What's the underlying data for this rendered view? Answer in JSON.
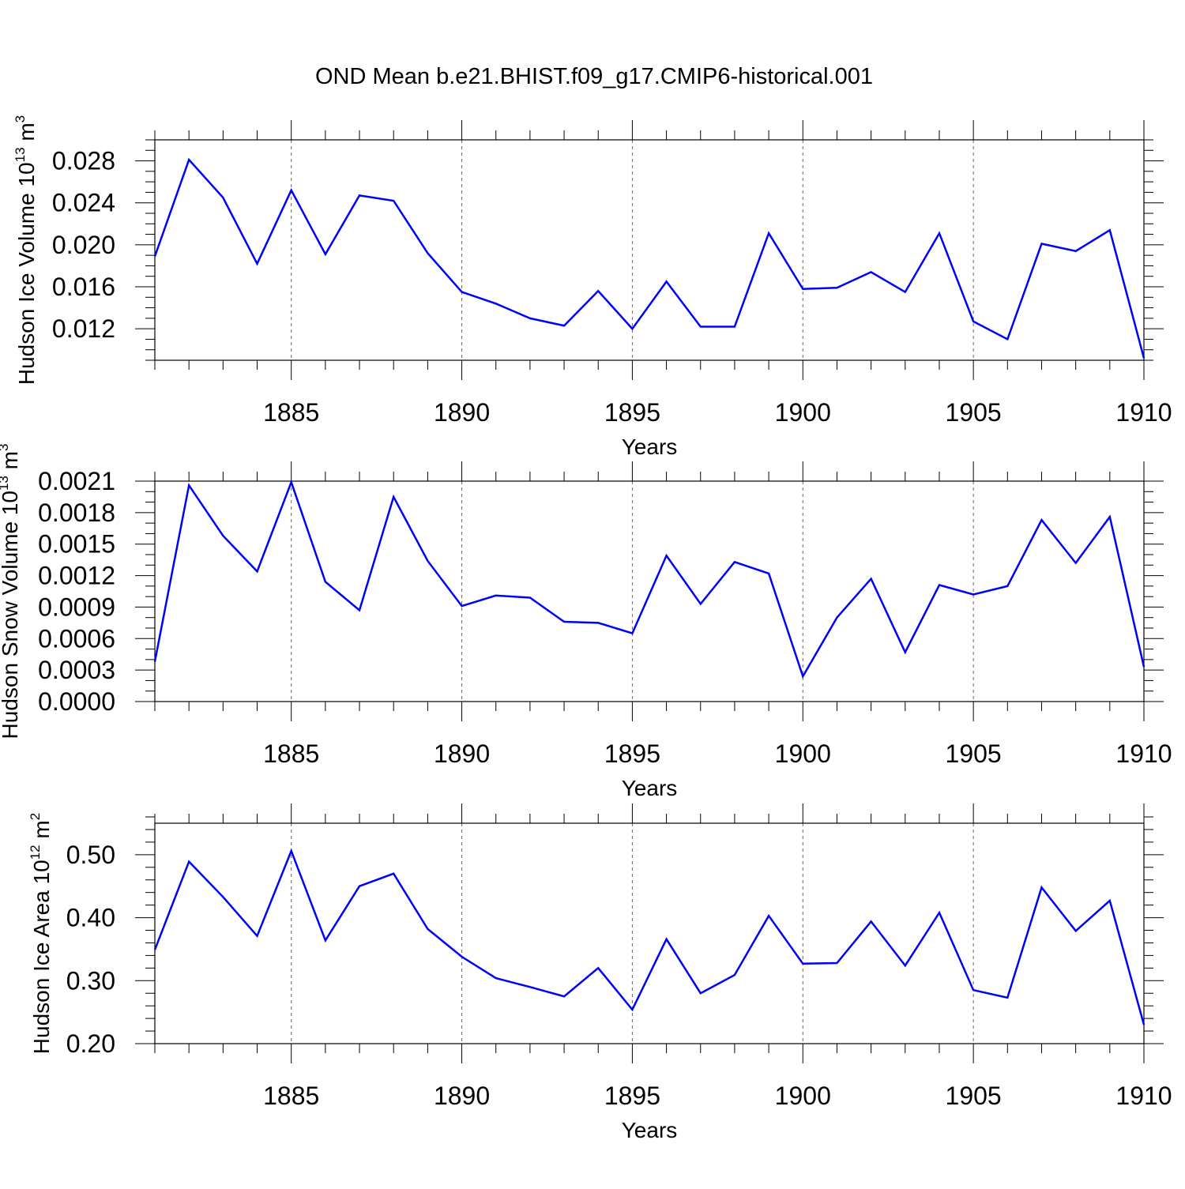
{
  "title": "OND Mean b.e21.BHIST.f09_g17.CMIP6-historical.001",
  "line_color": "#0000ff",
  "chart_data": [
    {
      "type": "line",
      "xlabel": "Years",
      "ylabel": {
        "text": "Hudson Ice Volume 10",
        "exp": "13",
        "unit": " m",
        "unit_exp": "3"
      },
      "xlim": [
        1881,
        1910
      ],
      "ylim": [
        0.009,
        0.03
      ],
      "xticks": [
        "1885",
        "1890",
        "1895",
        "1900",
        "1905",
        "1910"
      ],
      "yticks": [
        "0.012",
        "0.016",
        "0.020",
        "0.024",
        "0.028"
      ],
      "grid": "vertical dashed at major x ticks",
      "x": [
        1881,
        1882,
        1883,
        1884,
        1885,
        1886,
        1887,
        1888,
        1889,
        1890,
        1891,
        1892,
        1893,
        1894,
        1895,
        1896,
        1897,
        1898,
        1899,
        1900,
        1901,
        1902,
        1903,
        1904,
        1905,
        1906,
        1907,
        1908,
        1909,
        1910
      ],
      "values": [
        0.0189,
        0.0281,
        0.0245,
        0.0182,
        0.0252,
        0.0191,
        0.0247,
        0.0242,
        0.0192,
        0.0155,
        0.0144,
        0.013,
        0.0123,
        0.0156,
        0.012,
        0.0165,
        0.0122,
        0.0122,
        0.0211,
        0.0158,
        0.0159,
        0.0174,
        0.0155,
        0.0211,
        0.0127,
        0.011,
        0.0201,
        0.0194,
        0.0214,
        0.0092
      ]
    },
    {
      "type": "line",
      "xlabel": "Years",
      "ylabel": {
        "text": "Hudson Snow Volume 10",
        "exp": "13",
        "unit": " m",
        "unit_exp": "3"
      },
      "xlim": [
        1881,
        1910
      ],
      "ylim": [
        0.0,
        0.0021
      ],
      "xticks": [
        "1885",
        "1890",
        "1895",
        "1900",
        "1905",
        "1910"
      ],
      "yticks": [
        "0.0000",
        "0.0003",
        "0.0006",
        "0.0009",
        "0.0012",
        "0.0015",
        "0.0018",
        "0.0021"
      ],
      "grid": "vertical dashed at major x ticks",
      "x": [
        1881,
        1882,
        1883,
        1884,
        1885,
        1886,
        1887,
        1888,
        1889,
        1890,
        1891,
        1892,
        1893,
        1894,
        1895,
        1896,
        1897,
        1898,
        1899,
        1900,
        1901,
        1902,
        1903,
        1904,
        1905,
        1906,
        1907,
        1908,
        1909,
        1910
      ],
      "values": [
        0.00038,
        0.00206,
        0.00158,
        0.00124,
        0.00209,
        0.00114,
        0.00087,
        0.00195,
        0.00134,
        0.00091,
        0.00101,
        0.00099,
        0.00076,
        0.00075,
        0.00065,
        0.00139,
        0.00093,
        0.00133,
        0.00122,
        0.00024,
        0.0008,
        0.00117,
        0.00047,
        0.00111,
        0.00102,
        0.0011,
        0.00173,
        0.00132,
        0.00176,
        0.00033
      ]
    },
    {
      "type": "line",
      "xlabel": "Years",
      "ylabel": {
        "text": "Hudson Ice Area 10",
        "exp": "12",
        "unit": " m",
        "unit_exp": "2"
      },
      "xlim": [
        1881,
        1910
      ],
      "ylim": [
        0.2,
        0.55
      ],
      "xticks": [
        "1885",
        "1890",
        "1895",
        "1900",
        "1905",
        "1910"
      ],
      "yticks": [
        "0.20",
        "0.30",
        "0.40",
        "0.50"
      ],
      "grid": "vertical dashed at major x ticks",
      "x": [
        1881,
        1882,
        1883,
        1884,
        1885,
        1886,
        1887,
        1888,
        1889,
        1890,
        1891,
        1892,
        1893,
        1894,
        1895,
        1896,
        1897,
        1898,
        1899,
        1900,
        1901,
        1902,
        1903,
        1904,
        1905,
        1906,
        1907,
        1908,
        1909,
        1910
      ],
      "values": [
        0.349,
        0.489,
        0.433,
        0.371,
        0.506,
        0.364,
        0.45,
        0.47,
        0.382,
        0.338,
        0.304,
        0.29,
        0.275,
        0.32,
        0.254,
        0.366,
        0.28,
        0.309,
        0.403,
        0.327,
        0.328,
        0.394,
        0.324,
        0.408,
        0.285,
        0.273,
        0.448,
        0.379,
        0.427,
        0.23
      ]
    }
  ]
}
